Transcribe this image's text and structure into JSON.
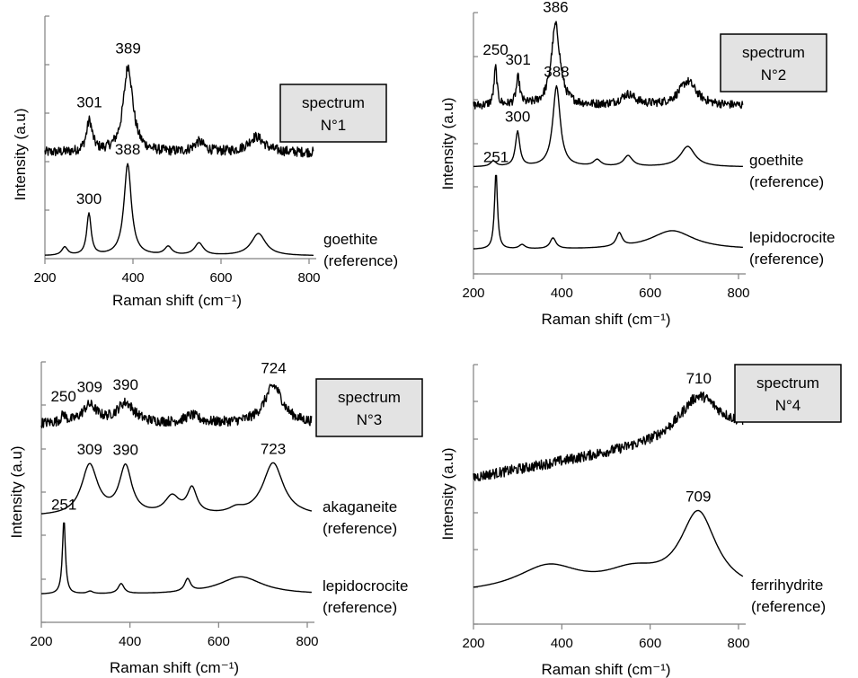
{
  "chart_data": [
    {
      "type": "line",
      "panel": "1",
      "xlabel": "Raman shift (cm⁻¹)",
      "ylabel": "Intensity (a.u)",
      "xlim": [
        200,
        800
      ],
      "xticks": [
        "200",
        "400",
        "600",
        "800"
      ],
      "box_label": [
        "spectrum",
        "N°1"
      ],
      "series": [
        {
          "name": "",
          "noise": 0.09,
          "peaks": [
            [
              301,
              0.55,
              8
            ],
            [
              389,
              1.55,
              13
            ],
            [
              550,
              0.18,
              15
            ],
            [
              680,
              0.28,
              22
            ]
          ],
          "labels": [
            [
              "301",
              301
            ],
            [
              "389",
              389
            ]
          ]
        },
        {
          "name": "goethite (reference)",
          "noise": 0.0,
          "peaks": [
            [
              245,
              0.15,
              8
            ],
            [
              300,
              0.75,
              6
            ],
            [
              388,
              1.65,
              10
            ],
            [
              480,
              0.15,
              10
            ],
            [
              550,
              0.22,
              12
            ],
            [
              685,
              0.4,
              20
            ]
          ],
          "labels": [
            [
              "300",
              300
            ],
            [
              "388",
              388
            ]
          ]
        }
      ]
    },
    {
      "type": "line",
      "panel": "2",
      "xlabel": "Raman shift (cm⁻¹)",
      "ylabel": "Intensity (a.u)",
      "xlim": [
        200,
        800
      ],
      "xticks": [
        "200",
        "400",
        "600",
        "800"
      ],
      "box_label": [
        "spectrum",
        "N°2"
      ],
      "series": [
        {
          "name": "",
          "noise": 0.08,
          "peaks": [
            [
              250,
              0.7,
              4
            ],
            [
              301,
              0.5,
              5
            ],
            [
              386,
              1.5,
              12
            ],
            [
              550,
              0.2,
              20
            ],
            [
              685,
              0.45,
              24
            ]
          ],
          "labels": [
            [
              "250",
              250
            ],
            [
              "301",
              301
            ],
            [
              "386",
              386
            ]
          ]
        },
        {
          "name": "goethite (reference)",
          "noise": 0.0,
          "peaks": [
            [
              245,
              0.1,
              8
            ],
            [
              300,
              0.65,
              6
            ],
            [
              388,
              1.5,
              10
            ],
            [
              480,
              0.12,
              10
            ],
            [
              550,
              0.2,
              12
            ],
            [
              685,
              0.38,
              20
            ]
          ],
          "labels": [
            [
              "300",
              300
            ],
            [
              "388",
              388
            ]
          ]
        },
        {
          "name": "lepidocrocite (reference)",
          "noise": 0.0,
          "peaks": [
            [
              251,
              1.45,
              4
            ],
            [
              310,
              0.08,
              8
            ],
            [
              380,
              0.2,
              8
            ],
            [
              530,
              0.25,
              8
            ],
            [
              650,
              0.35,
              60
            ]
          ],
          "labels": [
            [
              "251",
              251
            ]
          ]
        }
      ]
    },
    {
      "type": "line",
      "panel": "3",
      "xlabel": "Raman shift (cm⁻¹)",
      "ylabel": "Intensity (a.u)",
      "xlim": [
        200,
        800
      ],
      "xticks": [
        "200",
        "400",
        "600",
        "800"
      ],
      "box_label": [
        "spectrum",
        "N°3"
      ],
      "series": [
        {
          "name": "",
          "noise": 0.1,
          "peaks": [
            [
              250,
              0.15,
              6
            ],
            [
              309,
              0.35,
              20
            ],
            [
              390,
              0.4,
              24
            ],
            [
              540,
              0.15,
              20
            ],
            [
              724,
              0.75,
              25
            ]
          ],
          "labels": [
            [
              "250",
              250
            ],
            [
              "309",
              309
            ],
            [
              "390",
              390
            ],
            [
              "724",
              724
            ]
          ]
        },
        {
          "name": "akaganeite (reference)",
          "noise": 0.0,
          "peaks": [
            [
              309,
              1.0,
              22
            ],
            [
              390,
              0.95,
              17
            ],
            [
              495,
              0.35,
              20
            ],
            [
              540,
              0.5,
              13
            ],
            [
              640,
              0.1,
              20
            ],
            [
              723,
              1.05,
              28
            ]
          ],
          "labels": [
            [
              "309",
              309
            ],
            [
              "390",
              390
            ],
            [
              "723",
              723
            ]
          ]
        },
        {
          "name": "lepidocrocite (reference)",
          "noise": 0.0,
          "peaks": [
            [
              251,
              1.5,
              4
            ],
            [
              310,
              0.05,
              8
            ],
            [
              380,
              0.2,
              8
            ],
            [
              530,
              0.25,
              8
            ],
            [
              650,
              0.35,
              60
            ]
          ],
          "labels": [
            [
              "251",
              251
            ]
          ]
        }
      ]
    },
    {
      "type": "line",
      "panel": "4",
      "xlabel": "Raman shift (cm⁻¹)",
      "ylabel": "Intensity (a.u)",
      "xlim": [
        200,
        800
      ],
      "xticks": [
        "200",
        "400",
        "600",
        "800"
      ],
      "box_label": [
        "spectrum",
        "N°4"
      ],
      "series": [
        {
          "name": "",
          "noise": 0.1,
          "slope": 0.9,
          "peaks": [
            [
              710,
              0.8,
              55
            ]
          ],
          "labels": [
            [
              "710",
              710
            ]
          ]
        },
        {
          "name": "ferrihydrite (reference)",
          "noise": 0.0,
          "peaks": [
            [
              370,
              0.5,
              90
            ],
            [
              560,
              0.35,
              80
            ],
            [
              709,
              1.5,
              50
            ]
          ],
          "labels": [
            [
              "709",
              709
            ]
          ]
        }
      ]
    }
  ]
}
